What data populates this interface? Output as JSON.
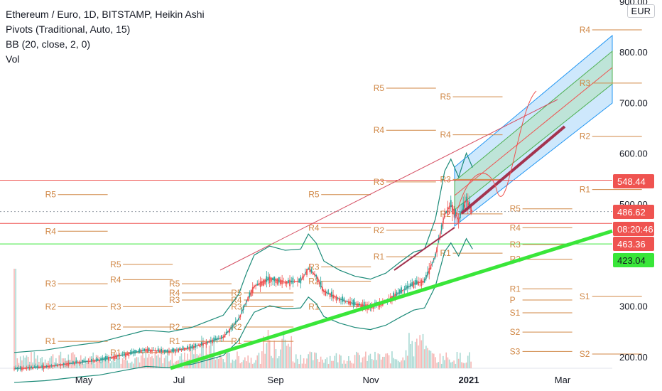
{
  "legend": {
    "title": "Ethereum / Euro, 1D, BITSTAMP, Heikin Ashi",
    "pivots": "Pivots (Traditional, Auto, 15)",
    "bb": "BB (20, close, 2, 0)",
    "vol": "Vol"
  },
  "currency": "EUR",
  "colors": {
    "up": "#26a69a",
    "down": "#ef5350",
    "pivot": "#d08745",
    "green_line": "#39e639",
    "bb": "#1b8a78",
    "channel": "#2196f3"
  },
  "chart_data": {
    "type": "candlestick",
    "symbol": "ETH/EUR",
    "interval": "1D",
    "exchange": "BITSTAMP",
    "style": "Heikin Ashi",
    "x_ticks": [
      "May",
      "Jul",
      "Sep",
      "Nov",
      "2021",
      "Mar"
    ],
    "y_ticks": [
      "900.00",
      "800.00",
      "700.00",
      "600.00",
      "500.00",
      "300.00",
      "200.00"
    ],
    "ylim": [
      165,
      905
    ],
    "price_tags": [
      {
        "label": "548.44",
        "value": 548.44,
        "bg": "#ef5350",
        "fg": "#ffffff"
      },
      {
        "label": "486.62",
        "value": 486.62,
        "bg": "#ef5350",
        "fg": "#ffffff"
      },
      {
        "label": "08:20:46",
        "value": 465.5,
        "bg": "#ef5350",
        "fg": "#ffffff"
      },
      {
        "label": "463.36",
        "value": 463.36,
        "bg": "#ef5350",
        "fg": "#ffffff"
      },
      {
        "label": "423.04",
        "value": 423.04,
        "bg": "#39e639",
        "fg": "#131722"
      }
    ],
    "horizontal_lines": [
      {
        "value": 548.44,
        "color": "#ef5350",
        "style": "solid"
      },
      {
        "value": 486.62,
        "color": "#9aa0aa",
        "style": "dotted"
      },
      {
        "value": 463.36,
        "color": "#ef5350",
        "style": "solid"
      },
      {
        "value": 423.04,
        "color": "#39e639",
        "style": "solid"
      }
    ],
    "pivot_labels": [
      {
        "label": "R5",
        "date": 20,
        "value": 520
      },
      {
        "label": "R4",
        "date": 20,
        "value": 448
      },
      {
        "label": "R5",
        "date": 62,
        "value": 383
      },
      {
        "label": "R3",
        "date": 20,
        "value": 345
      },
      {
        "label": "R4",
        "date": 62,
        "value": 353
      },
      {
        "label": "R5",
        "date": 100,
        "value": 345
      },
      {
        "label": "R2",
        "date": 20,
        "value": 300
      },
      {
        "label": "R4",
        "date": 100,
        "value": 327
      },
      {
        "label": "R3",
        "date": 62,
        "value": 300
      },
      {
        "label": "R2",
        "date": 62,
        "value": 260
      },
      {
        "label": "R3",
        "date": 100,
        "value": 313
      },
      {
        "label": "R2",
        "date": 100,
        "value": 260
      },
      {
        "label": "R5",
        "date": 140,
        "value": 327
      },
      {
        "label": "R4",
        "date": 140,
        "value": 313
      },
      {
        "label": "R3",
        "date": 140,
        "value": 300
      },
      {
        "label": "R2",
        "date": 140,
        "value": 260
      },
      {
        "label": "R1",
        "date": 20,
        "value": 232
      },
      {
        "label": "R1",
        "date": 62,
        "value": 210
      },
      {
        "label": "R1",
        "date": 100,
        "value": 232
      },
      {
        "label": "R1",
        "date": 140,
        "value": 232
      },
      {
        "label": "R5",
        "date": 190,
        "value": 520
      },
      {
        "label": "R4",
        "date": 190,
        "value": 455
      },
      {
        "label": "R3",
        "date": 190,
        "value": 378
      },
      {
        "label": "R2",
        "date": 190,
        "value": 350
      },
      {
        "label": "R1",
        "date": 190,
        "value": 300
      },
      {
        "label": "R5",
        "date": 232,
        "value": 730
      },
      {
        "label": "R4",
        "date": 232,
        "value": 647
      },
      {
        "label": "R3",
        "date": 232,
        "value": 545
      },
      {
        "label": "R2",
        "date": 232,
        "value": 450
      },
      {
        "label": "R1",
        "date": 232,
        "value": 398
      },
      {
        "label": "R5",
        "date": 275,
        "value": 713
      },
      {
        "label": "R4",
        "date": 275,
        "value": 638
      },
      {
        "label": "R3",
        "date": 275,
        "value": 550
      },
      {
        "label": "R2",
        "date": 275,
        "value": 482
      },
      {
        "label": "R1",
        "date": 275,
        "value": 405
      },
      {
        "label": "R5",
        "date": 320,
        "value": 492
      },
      {
        "label": "R4",
        "date": 320,
        "value": 455
      },
      {
        "label": "R3",
        "date": 320,
        "value": 422
      },
      {
        "label": "R2",
        "date": 320,
        "value": 393
      },
      {
        "label": "R1",
        "date": 320,
        "value": 335
      },
      {
        "label": "P",
        "date": 320,
        "value": 313
      },
      {
        "label": "S1",
        "date": 320,
        "value": 288
      },
      {
        "label": "S2",
        "date": 320,
        "value": 250
      },
      {
        "label": "S3",
        "date": 320,
        "value": 212
      },
      {
        "label": "R4",
        "date": 365,
        "value": 845
      },
      {
        "label": "R3",
        "date": 365,
        "value": 740
      },
      {
        "label": "R2",
        "date": 365,
        "value": 635
      },
      {
        "label": "R1",
        "date": 365,
        "value": 530
      },
      {
        "label": "S1",
        "date": 365,
        "value": 320
      },
      {
        "label": "S2",
        "date": 365,
        "value": 207
      }
    ]
  }
}
